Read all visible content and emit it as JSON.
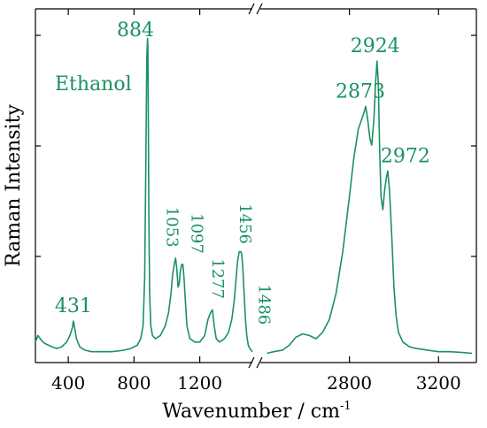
{
  "colors": {
    "series": "#1a9161",
    "axis": "#000000",
    "background": "#ffffff"
  },
  "chart_data": {
    "type": "line",
    "title": "",
    "xlabel": "Wavenumber / cm-1",
    "xlabel_main": "Wavenumber / cm",
    "xlabel_sup": "-1",
    "ylabel": "Raman Intensity",
    "broken_x_axis": true,
    "x_segments": [
      {
        "range": [
          200,
          1520
        ],
        "ticks": [
          400,
          800,
          1200
        ]
      },
      {
        "range": [
          2400,
          3370
        ],
        "ticks": [
          2800,
          3200
        ]
      }
    ],
    "y_ticks_shown": false,
    "ylim": [
      0,
      1.0
    ],
    "series": [
      {
        "name": "Ethanol",
        "segments": [
          {
            "x": [
              200,
              215,
              230,
              245,
              260,
              280,
              300,
              330,
              360,
              390,
              410,
              425,
              431,
              438,
              450,
              470,
              500,
              540,
              580,
              620,
              660,
              700,
              740,
              780,
              800,
              820,
              840,
              855,
              865,
              872,
              878,
              882,
              884,
              887,
              890,
              895,
              902,
              912,
              930,
              960,
              990,
              1010,
              1025,
              1035,
              1045,
              1053,
              1060,
              1068,
              1075,
              1082,
              1090,
              1097,
              1104,
              1112,
              1122,
              1140,
              1170,
              1200,
              1230,
              1250,
              1265,
              1277,
              1288,
              1300,
              1320,
              1350,
              1375,
              1395,
              1410,
              1420,
              1430,
              1440,
              1450,
              1456,
              1462,
              1470,
              1478,
              1486,
              1495,
              1505,
              1520
            ],
            "y": [
              0.05,
              0.07,
              0.06,
              0.05,
              0.045,
              0.04,
              0.035,
              0.03,
              0.035,
              0.05,
              0.07,
              0.095,
              0.115,
              0.095,
              0.06,
              0.035,
              0.025,
              0.02,
              0.02,
              0.02,
              0.02,
              0.022,
              0.025,
              0.03,
              0.035,
              0.04,
              0.06,
              0.1,
              0.25,
              0.6,
              0.93,
              0.99,
              0.97,
              0.75,
              0.45,
              0.2,
              0.1,
              0.07,
              0.06,
              0.07,
              0.1,
              0.14,
              0.2,
              0.26,
              0.29,
              0.31,
              0.28,
              0.22,
              0.23,
              0.27,
              0.29,
              0.29,
              0.25,
              0.18,
              0.1,
              0.06,
              0.05,
              0.05,
              0.07,
              0.12,
              0.14,
              0.15,
              0.1,
              0.06,
              0.05,
              0.06,
              0.08,
              0.12,
              0.18,
              0.24,
              0.3,
              0.33,
              0.33,
              0.32,
              0.28,
              0.2,
              0.12,
              0.07,
              0.04,
              0.03,
              0.02
            ]
          },
          {
            "x": [
              2430,
              2460,
              2500,
              2530,
              2560,
              2590,
              2620,
              2650,
              2680,
              2710,
              2740,
              2770,
              2800,
              2820,
              2840,
              2855,
              2865,
              2873,
              2882,
              2892,
              2900,
              2910,
              2918,
              2924,
              2930,
              2936,
              2942,
              2950,
              2958,
              2966,
              2972,
              2980,
              2990,
              3000,
              3010,
              3020,
              3040,
              3070,
              3100,
              3150,
              3200,
              3250,
              3300,
              3350
            ],
            "y": [
              0.015,
              0.02,
              0.025,
              0.04,
              0.065,
              0.075,
              0.07,
              0.06,
              0.08,
              0.12,
              0.2,
              0.33,
              0.5,
              0.62,
              0.71,
              0.74,
              0.76,
              0.78,
              0.74,
              0.68,
              0.66,
              0.74,
              0.86,
              0.92,
              0.85,
              0.64,
              0.5,
              0.46,
              0.52,
              0.56,
              0.58,
              0.52,
              0.38,
              0.22,
              0.13,
              0.08,
              0.05,
              0.035,
              0.03,
              0.025,
              0.02,
              0.02,
              0.018,
              0.015
            ]
          }
        ]
      }
    ],
    "annotations": [
      {
        "text": "884",
        "x": 884,
        "rotated": false
      },
      {
        "text": "431",
        "x": 431,
        "rotated": false
      },
      {
        "text": "1053",
        "x": 1053,
        "rotated": true
      },
      {
        "text": "1097",
        "x": 1097,
        "rotated": true
      },
      {
        "text": "1277",
        "x": 1277,
        "rotated": true
      },
      {
        "text": "1456",
        "x": 1456,
        "rotated": true
      },
      {
        "text": "1486",
        "x": 1486,
        "rotated": true
      },
      {
        "text": "2873",
        "x": 2873,
        "rotated": false
      },
      {
        "text": "2924",
        "x": 2924,
        "rotated": false
      },
      {
        "text": "2972",
        "x": 2972,
        "rotated": false
      }
    ],
    "legend_text": "Ethanol",
    "legend_position": "upper-left",
    "grid": false
  }
}
